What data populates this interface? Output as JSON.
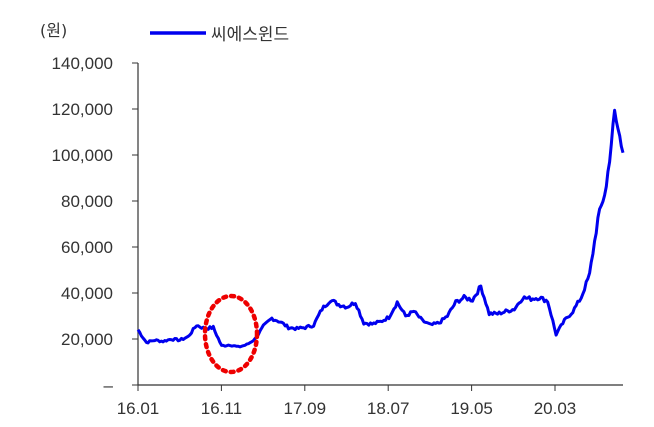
{
  "chart_data": {
    "type": "line",
    "title": "",
    "ylabel": "(원)",
    "xlabel": "",
    "ylim": [
      0,
      140000
    ],
    "yticks": [
      0,
      20000,
      40000,
      60000,
      80000,
      100000,
      120000,
      140000
    ],
    "ytick_labels": [
      "–",
      "20,000",
      "40,000",
      "60,000",
      "80,000",
      "100,000",
      "120,000",
      "140,000"
    ],
    "xtick_labels": [
      "16.01",
      "16.11",
      "17.09",
      "18.07",
      "19.05",
      "20.03"
    ],
    "grid": false,
    "legend_position": "top",
    "series": [
      {
        "name": "씨에스윈드",
        "color": "#0000ee",
        "x": [
          "16.01",
          "16.02",
          "16.03",
          "16.04",
          "16.05",
          "16.06",
          "16.07",
          "16.08",
          "16.09",
          "16.10",
          "16.11",
          "16.12",
          "17.01",
          "17.02",
          "17.03",
          "17.04",
          "17.05",
          "17.06",
          "17.07",
          "17.08",
          "17.09",
          "17.10",
          "17.11",
          "17.12",
          "18.01",
          "18.02",
          "18.03",
          "18.04",
          "18.05",
          "18.06",
          "18.07",
          "18.08",
          "18.09",
          "18.10",
          "18.11",
          "18.12",
          "19.01",
          "19.02",
          "19.03",
          "19.04",
          "19.05",
          "19.06",
          "19.07",
          "19.08",
          "19.09",
          "19.10",
          "19.11",
          "19.12",
          "20.01",
          "20.02",
          "20.03",
          "20.04",
          "20.05",
          "20.06",
          "20.07",
          "20.08",
          "20.09",
          "20.10",
          "20.11"
        ],
        "values": [
          24000,
          18500,
          19500,
          19000,
          20000,
          19500,
          21000,
          26000,
          24500,
          25000,
          17000,
          17500,
          16500,
          17500,
          20000,
          25500,
          29000,
          27500,
          25000,
          24500,
          25000,
          26000,
          33000,
          37000,
          35000,
          34000,
          36000,
          27000,
          26500,
          27500,
          29500,
          36000,
          30000,
          32000,
          28000,
          26000,
          27000,
          30000,
          36000,
          38000,
          37000,
          43000,
          31000,
          31000,
          32000,
          33000,
          38000,
          37500,
          38000,
          36500,
          22000,
          28000,
          32000,
          38000,
          48000,
          72000,
          86000,
          118000,
          101000
        ]
      }
    ],
    "annotations": [
      {
        "type": "dotted-ellipse",
        "color": "#ff0000",
        "around": "16.11 dip"
      }
    ]
  },
  "legend": {
    "label": "씨에스윈드"
  },
  "axis": {
    "unit": "(원)"
  }
}
